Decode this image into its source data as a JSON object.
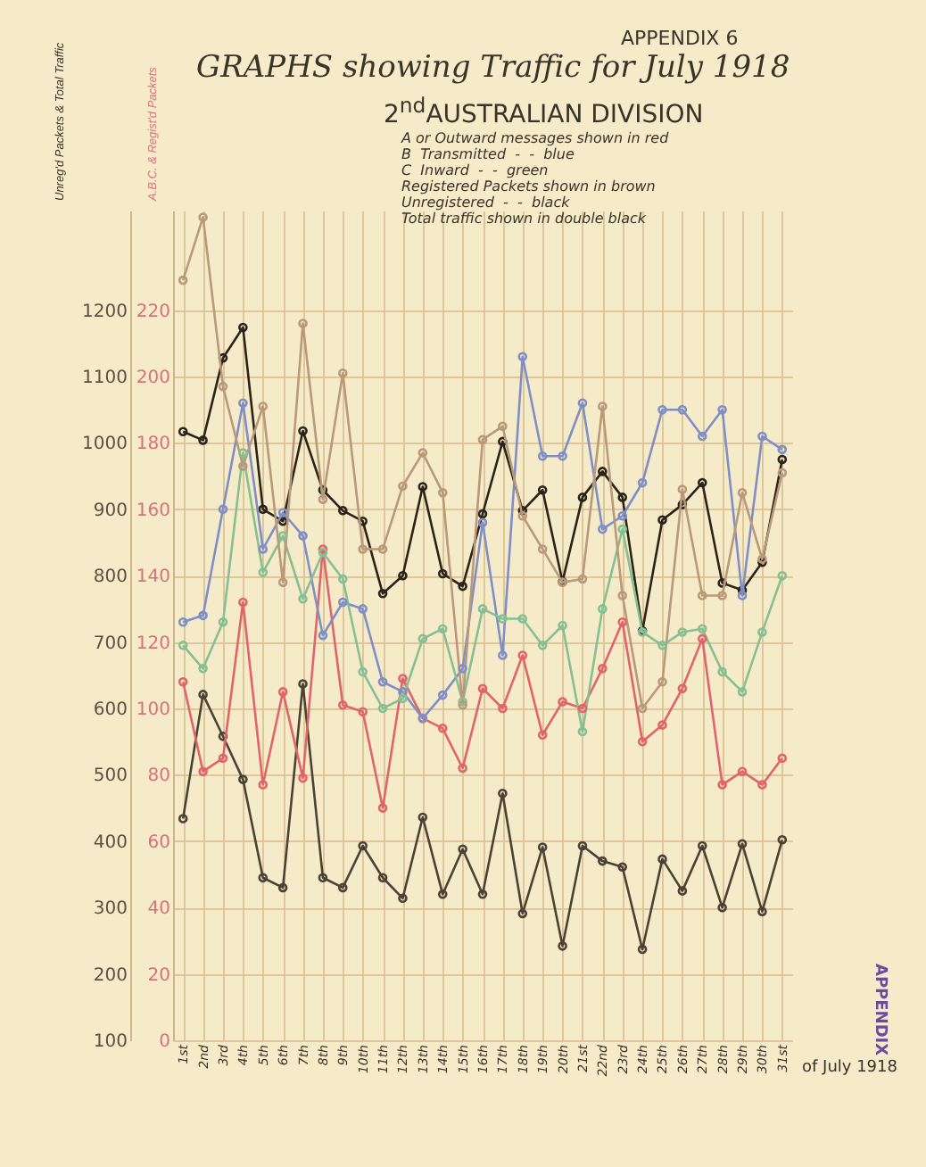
{
  "chart_data": {
    "type": "line",
    "title": "GRAPHS showing Traffic for July 1918",
    "subtitle": "2$^{nd}$AUSTRALIAN DIVISION",
    "annotations": [
      "APPENDIX 6",
      "A or Outward messages shown in red",
      "B  Transmitted  -  -  blue",
      "C  Inward  -  -  green",
      "Registered Packets shown in brown",
      "Unregistered  -  -  black",
      "Total traffic shown in double black",
      "APPENDIX"
    ],
    "xlabel": "of July 1918",
    "ylabel": "Unreg'd Packets & Total Traffic",
    "y2label": "A.B.C. & Regist'd Packets",
    "categories": [
      "1st",
      "2nd",
      "3rd",
      "4th",
      "5th",
      "6th",
      "7th",
      "8th",
      "9th",
      "10th",
      "11th",
      "12th",
      "13th",
      "14th",
      "15th",
      "16th",
      "17th",
      "18th",
      "19th",
      "20th",
      "21st",
      "22nd",
      "23rd",
      "24th",
      "25th",
      "26th",
      "27th",
      "28th",
      "29th",
      "30th",
      "31st"
    ],
    "ylim": [
      100,
      1350
    ],
    "yticks": [
      100,
      200,
      300,
      400,
      500,
      600,
      700,
      800,
      900,
      1000,
      1100,
      1200
    ],
    "y2lim": [
      0,
      250
    ],
    "y2ticks": [
      0,
      20,
      40,
      60,
      80,
      100,
      120,
      140,
      160,
      180,
      200,
      220
    ],
    "grid": true,
    "marker": "circle",
    "line_style": "solid",
    "series": [
      {
        "color": "#e0646a",
        "axis": "y2",
        "values": [
          108,
          81,
          85,
          132,
          77,
          105,
          79,
          148,
          101,
          99,
          70,
          109,
          97,
          94,
          82,
          106,
          100,
          116,
          92,
          102,
          100,
          112,
          126,
          90,
          95,
          106,
          121,
          77,
          81,
          77,
          85
        ]
      },
      {
        "color": "#7f8fc6",
        "axis": "y2",
        "values": [
          126,
          128,
          160,
          192,
          148,
          159,
          152,
          122,
          132,
          130,
          108,
          105,
          97,
          104,
          112,
          156,
          116,
          206,
          176,
          176,
          192,
          154,
          158,
          168,
          190,
          190,
          182,
          190,
          134,
          182,
          178
        ]
      },
      {
        "color": "#86bf92",
        "axis": "y2",
        "values": [
          119,
          112,
          126,
          177,
          141,
          152,
          133,
          147,
          139,
          111,
          100,
          103,
          121,
          124,
          102,
          130,
          127,
          127,
          119,
          125,
          93,
          130,
          154,
          123,
          119,
          123,
          124,
          111,
          105,
          123,
          140
        ]
      },
      {
        "color": "#b8997a",
        "axis": "y2",
        "values": [
          229,
          248,
          197,
          173,
          191,
          138,
          216,
          163,
          201,
          148,
          148,
          167,
          177,
          165,
          101,
          181,
          185,
          158,
          148,
          138,
          139,
          191,
          134,
          100,
          108,
          166,
          134,
          134,
          165,
          145,
          171
        ]
      },
      {
        "color": "#4a4234",
        "values": [
          434,
          621,
          558,
          493,
          345,
          330,
          637,
          345,
          330,
          393,
          345,
          314,
          436,
          320,
          388,
          320,
          472,
          291,
          391,
          242,
          393,
          370,
          361,
          237,
          373,
          325,
          393,
          300,
          396,
          294,
          402
        ]
      },
      {
        "color": "#2a2418",
        "values": [
          1017,
          1004,
          1128,
          1174,
          900,
          882,
          1018,
          929,
          898,
          882,
          773,
          800,
          934,
          803,
          784,
          893,
          1002,
          898,
          929,
          791,
          918,
          957,
          918,
          717,
          884,
          907,
          940,
          789,
          778,
          820,
          975
        ]
      }
    ]
  }
}
